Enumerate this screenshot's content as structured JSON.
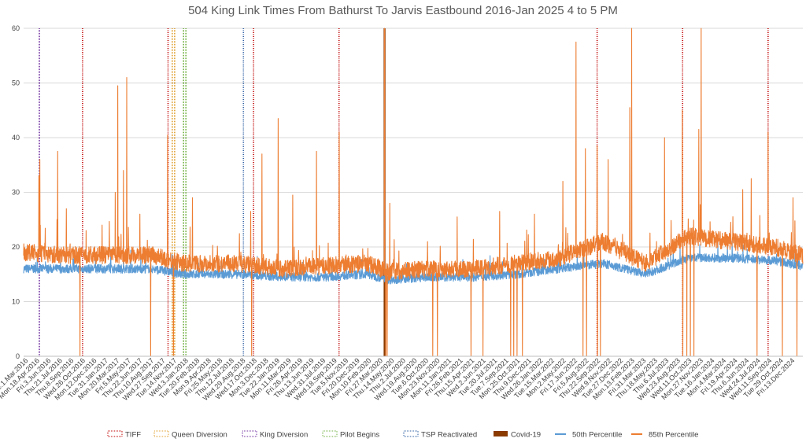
{
  "chart_data": {
    "type": "line",
    "title": "504 King Link Times From Bathurst To Jarvis Eastbound 2016-Jan 2025 4 to 5 PM",
    "xlabel": "",
    "ylabel": "",
    "ylim": [
      0,
      60
    ],
    "y_ticks": [
      0,
      10,
      20,
      30,
      40,
      50,
      60
    ],
    "x_range": [
      "2016-01-01",
      "2025-01-31"
    ],
    "grid": "horizontal",
    "legend_position": "bottom",
    "x_tick_labels": [
      "Tue.1.Mar.2016",
      "Mon.18.Apr.2016",
      "Fri.3.Jun.2016",
      "Thu.21.Jul.2016",
      "Thu.8.Sep.2016",
      "Wed.26.Oct.2016",
      "Mon.12.Dec.2016",
      "Tue.31.Jan.2017",
      "Mon.20.Mar.2017",
      "Fri.5.May.2017",
      "Thu.22.Jun.2017",
      "Thu.10.Aug.2017",
      "Wed.27.Sep.2017",
      "Tue.14.Nov.2017",
      "Wed.3.Jan.2018",
      "Tue.20.Feb.2018",
      "Mon.9.Apr.2018",
      "Fri.25.May.2018",
      "Thu.12.Jul.2018",
      "Wed.29.Aug.2018",
      "Wed.17.Oct.2018",
      "Mon.3.Dec.2018",
      "Tue.22.Jan.2019",
      "Mon.11.Mar.2019",
      "Fri.26.Apr.2019",
      "Thu.13.Jun.2019",
      "Wed.31.Jul.2019",
      "Wed.18.Sep.2019",
      "Tue.5.Nov.2019",
      "Fri.20.Dec.2019",
      "Mon.10.Feb.2020",
      "Fri.27.Mar.2020",
      "Thu.14.May.2020",
      "Thu.2.Jul.2020",
      "Wed.19.Aug.2020",
      "Tue.6.Oct.2020",
      "Mon.23.Nov.2020",
      "Mon.11.Jan.2021",
      "Fri.26.Feb.2021",
      "Thu.15.Apr.2021",
      "Wed.2.Jun.2021",
      "Tue.20.Jul.2021",
      "Tue.7.Sep.2021",
      "Mon.25.Oct.2021",
      "Thu.9.Dec.2021",
      "Wed.26.Jan.2022",
      "Tue.15.Mar.2022",
      "Mon.2.May.2022",
      "Fri.17.Jun.2022",
      "Fri.5.Aug.2022",
      "Thu.22.Sep.2022",
      "Wed.9.Nov.2022",
      "Tue.27.Dec.2022",
      "Mon.13.Feb.2023",
      "Fri.31.Mar.2023",
      "Thu.18.May.2023",
      "Thu.6.Jul.2023",
      "Wed.23.Aug.2023",
      "Wed.11.Oct.2023",
      "Mon.27.Nov.2023",
      "Tue.16.Jan.2024",
      "Mon.4.Mar.2024",
      "Fri.19.Apr.2024",
      "Thu.6.Jun.2024",
      "Wed.24.Jul.2024",
      "Wed.11.Sep.2024",
      "Tue.29.Oct.2024",
      "Fri.13.Dec.2024"
    ],
    "events": [
      {
        "name": "TIFF",
        "color": "#c00000",
        "dates": [
          "2016-09-08",
          "2017-09-07",
          "2018-09-06",
          "2019-09-05",
          "2022-09-08",
          "2023-09-07",
          "2024-09-05"
        ]
      },
      {
        "name": "Queen Diversion",
        "color": "#e0a030",
        "dates": [
          "2017-09-25"
        ]
      },
      {
        "name": "King Diversion",
        "color": "#7030a0",
        "dates": [
          "2016-03-08"
        ]
      },
      {
        "name": "Pilot Begins",
        "color": "#70b040",
        "dates": [
          "2017-11-12"
        ]
      },
      {
        "name": "TSP Reactivated",
        "color": "#2e5fa3",
        "dates": [
          "2018-07-25"
        ]
      },
      {
        "name": "Covid-19",
        "color": "#8b3a00",
        "dates": [
          "2020-03-17"
        ]
      }
    ],
    "series": [
      {
        "name": "50th Percentile",
        "color": "#5b9bd5",
        "x": [
          "2016-01-01",
          "2016-07-01",
          "2017-01-01",
          "2017-07-01",
          "2017-11-12",
          "2018-07-01",
          "2019-01-01",
          "2019-07-01",
          "2020-01-01",
          "2020-04-01",
          "2020-10-01",
          "2021-04-01",
          "2021-10-01",
          "2022-04-01",
          "2022-10-01",
          "2023-04-01",
          "2023-10-01",
          "2024-04-01",
          "2024-10-01",
          "2025-01-31"
        ],
        "values": [
          16,
          16,
          16,
          16,
          15,
          15,
          14.5,
          14.5,
          15,
          14,
          14.5,
          14.5,
          15,
          16,
          17,
          15,
          18,
          18,
          17.5,
          16.5
        ]
      },
      {
        "name": "85th Percentile",
        "color": "#ed7d31",
        "x": [
          "2016-01-01",
          "2016-07-01",
          "2017-01-01",
          "2017-07-01",
          "2017-11-12",
          "2018-07-01",
          "2019-01-01",
          "2019-07-01",
          "2020-01-01",
          "2020-04-01",
          "2020-10-01",
          "2021-04-01",
          "2021-10-01",
          "2022-04-01",
          "2022-10-01",
          "2023-04-01",
          "2023-10-01",
          "2024-04-01",
          "2024-10-01",
          "2025-01-31"
        ],
        "values": [
          19,
          18.5,
          18.5,
          18.5,
          17,
          17,
          16,
          16.5,
          17,
          15.5,
          16,
          16,
          17,
          18,
          21,
          17,
          22,
          21,
          20,
          18.5
        ],
        "spikes": [
          [
            "2016-03-06",
            33
          ],
          [
            "2016-03-10",
            36
          ],
          [
            "2016-05-25",
            37.5
          ],
          [
            "2016-07-01",
            27
          ],
          [
            "2017-01-25",
            30
          ],
          [
            "2017-02-05",
            49.5
          ],
          [
            "2017-03-01",
            34
          ],
          [
            "2017-03-15",
            51
          ],
          [
            "2017-05-10",
            26
          ],
          [
            "2017-09-05",
            40.5
          ],
          [
            "2017-12-20",
            29
          ],
          [
            "2018-08-25",
            26.5
          ],
          [
            "2018-10-12",
            37
          ],
          [
            "2018-12-20",
            43.5
          ],
          [
            "2019-02-20",
            29.5
          ],
          [
            "2019-06-01",
            37.5
          ],
          [
            "2019-09-06",
            41
          ],
          [
            "2020-03-17",
            60
          ],
          [
            "2020-04-08",
            28
          ],
          [
            "2021-01-20",
            25.5
          ],
          [
            "2021-07-20",
            26.5
          ],
          [
            "2021-12-15",
            26
          ],
          [
            "2022-04-15",
            32
          ],
          [
            "2022-06-10",
            57.5
          ],
          [
            "2022-07-20",
            38
          ],
          [
            "2022-09-08",
            38.5
          ],
          [
            "2022-10-25",
            36
          ],
          [
            "2023-01-25",
            45.5
          ],
          [
            "2023-02-02",
            60
          ],
          [
            "2023-06-22",
            40
          ],
          [
            "2023-09-06",
            45
          ],
          [
            "2023-11-15",
            41.5
          ],
          [
            "2023-11-25",
            60
          ],
          [
            "2024-05-20",
            30.5
          ],
          [
            "2024-06-25",
            32.5
          ],
          [
            "2024-09-05",
            41
          ],
          [
            "2024-12-20",
            29
          ]
        ],
        "dips": [
          "2016-08-28",
          "2017-06-25",
          "2017-09-30",
          "2018-08-29",
          "2020-03-22",
          "2020-03-28",
          "2020-10-08",
          "2020-10-28",
          "2021-03-20",
          "2021-05-10",
          "2021-09-05",
          "2021-09-18",
          "2021-10-02",
          "2021-10-25",
          "2022-07-10",
          "2022-07-25",
          "2022-09-10",
          "2022-09-22",
          "2023-09-08",
          "2023-09-25",
          "2023-10-10",
          "2023-10-25",
          "2024-07-20",
          "2024-11-05",
          "2025-01-06"
        ]
      }
    ]
  }
}
